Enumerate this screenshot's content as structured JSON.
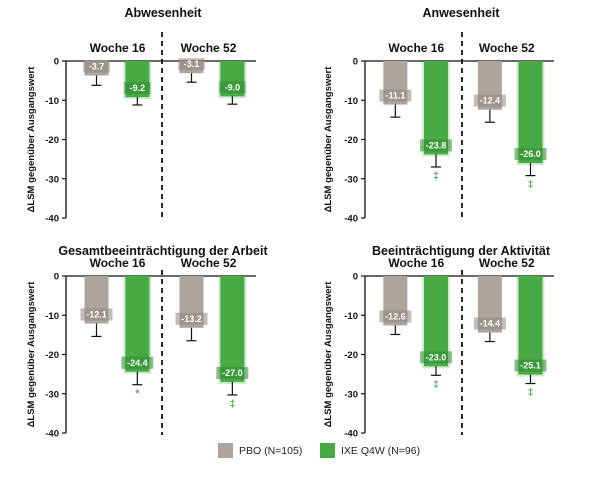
{
  "colors": {
    "pbo": "#ADA49C",
    "ixe": "#48AA45",
    "sig": "#48AA45",
    "axis": "#111111"
  },
  "legend": {
    "pbo": "PBO (N=105)",
    "ixe": "IXE Q4W (N=96)"
  },
  "chart_data": [
    {
      "type": "bar",
      "title": "Abwesenheit",
      "ylabel": "ΔLSM gegenüber Ausgangswert",
      "ylim": [
        -40,
        0
      ],
      "yticks": [
        "0",
        "-10",
        "-20",
        "-30",
        "-40"
      ],
      "categories": [
        "Woche 16",
        "Woche 52"
      ],
      "series": [
        {
          "name": "PBO (N=105)",
          "values": [
            -3.7,
            -3.1
          ],
          "labels": [
            "-3.7",
            "-3.1"
          ],
          "err": [
            2.5,
            2.3
          ]
        },
        {
          "name": "IXE Q4W (N=96)",
          "values": [
            -9.2,
            -9.0
          ],
          "labels": [
            "-9.2",
            "-9.0"
          ],
          "err": [
            2.0,
            2.0
          ]
        }
      ],
      "sig": [
        "",
        ""
      ]
    },
    {
      "type": "bar",
      "title": "Anwesenheit",
      "ylabel": "ΔLSM gegenüber Ausgangswert",
      "ylim": [
        -40,
        0
      ],
      "yticks": [
        "0",
        "-10",
        "-20",
        "-30",
        "-40"
      ],
      "categories": [
        "Woche 16",
        "Woche 52"
      ],
      "series": [
        {
          "name": "PBO (N=105)",
          "values": [
            -11.1,
            -12.4
          ],
          "labels": [
            "-11.1",
            "-12.4"
          ],
          "err": [
            3.2,
            3.2
          ]
        },
        {
          "name": "IXE Q4W (N=96)",
          "values": [
            -23.8,
            -26.0
          ],
          "labels": [
            "-23.8",
            "-26.0"
          ],
          "err": [
            3.2,
            3.2
          ]
        }
      ],
      "sig": [
        "‡",
        "‡"
      ]
    },
    {
      "type": "bar",
      "title": "Gesamtbeeinträchtigung der Arbeit",
      "ylabel": "ΔLSM gegenüber Ausgangswert",
      "ylim": [
        -40,
        0
      ],
      "yticks": [
        "0",
        "-10",
        "-20",
        "-30",
        "-40"
      ],
      "categories": [
        "Woche 16",
        "Woche 52"
      ],
      "series": [
        {
          "name": "PBO (N=105)",
          "values": [
            -12.1,
            -13.2
          ],
          "labels": [
            "-12.1",
            "-13.2"
          ],
          "err": [
            3.3,
            3.3
          ]
        },
        {
          "name": "IXE Q4W (N=96)",
          "values": [
            -24.4,
            -27.0
          ],
          "labels": [
            "-24.4",
            "-27.0"
          ],
          "err": [
            3.3,
            3.3
          ]
        }
      ],
      "sig": [
        "*",
        "‡"
      ]
    },
    {
      "type": "bar",
      "title": "Beeinträchtigung der Aktivität",
      "ylabel": "ΔLSM gegenüber Ausgangswert",
      "ylim": [
        -40,
        0
      ],
      "yticks": [
        "0",
        "-10",
        "-20",
        "-30",
        "-40"
      ],
      "categories": [
        "Woche 16",
        "Woche 52"
      ],
      "series": [
        {
          "name": "PBO (N=105)",
          "values": [
            -12.6,
            -14.4
          ],
          "labels": [
            "-12.6",
            "-14.4"
          ],
          "err": [
            2.3,
            2.3
          ]
        },
        {
          "name": "IXE Q4W (N=96)",
          "values": [
            -23.0,
            -25.1
          ],
          "labels": [
            "-23.0",
            "-25.1"
          ],
          "err": [
            2.3,
            2.3
          ]
        }
      ],
      "sig": [
        "‡",
        "‡"
      ]
    }
  ]
}
